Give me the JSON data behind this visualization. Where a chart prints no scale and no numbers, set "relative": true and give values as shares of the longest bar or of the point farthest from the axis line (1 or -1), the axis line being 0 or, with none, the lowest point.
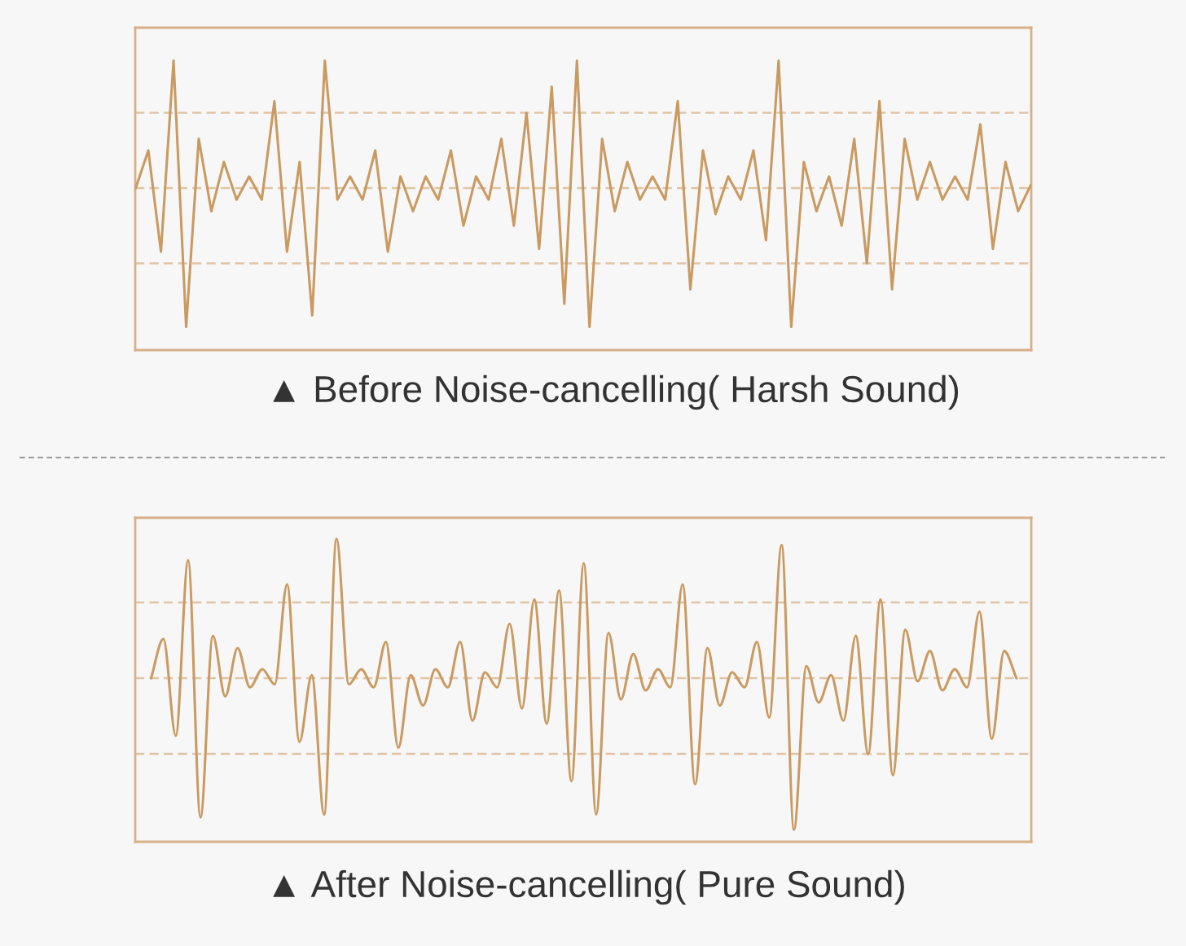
{
  "chart_data": [
    {
      "type": "line",
      "relative": true,
      "color": "#c99a62",
      "line_style": "solid",
      "xlabel": "▲ Before Noise-cancelling( Harsh Sound)",
      "categories": [
        null,
        null,
        null,
        null,
        null,
        null,
        null,
        null,
        null,
        null,
        null,
        null,
        null,
        null,
        null,
        null,
        null,
        null,
        null,
        null,
        null,
        null,
        null,
        null,
        null,
        null,
        null,
        null,
        null,
        null,
        null,
        null,
        null,
        null,
        null,
        null,
        null,
        null,
        null,
        null,
        null,
        null,
        null,
        null,
        null,
        null,
        null,
        null,
        null,
        null,
        null,
        null,
        null,
        null,
        null,
        null,
        null,
        null,
        null,
        null,
        null,
        null,
        null,
        null,
        null,
        null,
        null,
        null,
        null,
        null,
        null,
        null
      ],
      "values": [
        0.56,
        0.69,
        0.34,
        1,
        0.08,
        0.73,
        0.48,
        0.65,
        0.52,
        0.6,
        0.52,
        0.86,
        0.34,
        0.65,
        0.12,
        1,
        0.52,
        0.6,
        0.52,
        0.69,
        0.34,
        0.6,
        0.48,
        0.6,
        0.52,
        0.69,
        0.43,
        0.6,
        0.52,
        0.73,
        0.43,
        0.82,
        0.35,
        0.91,
        0.16,
        1,
        0.08,
        0.73,
        0.48,
        0.65,
        0.52,
        0.6,
        0.52,
        0.86,
        0.21,
        0.69,
        0.47,
        0.6,
        0.52,
        0.69,
        0.38,
        1,
        0.08,
        0.65,
        0.48,
        0.6,
        0.43,
        0.73,
        0.3,
        0.86,
        0.21,
        0.73,
        0.52,
        0.65,
        0.52,
        0.6,
        0.52,
        0.78,
        0.35,
        0.65,
        0.48,
        0.57
      ],
      "ref_lines": [
        {
          "axis": "y",
          "value": 0.82,
          "color": "#e0c4a6",
          "line_style": "dashed"
        },
        {
          "axis": "y",
          "value": 0.56,
          "color": "#e0c4a6",
          "line_style": "dashed"
        },
        {
          "axis": "y",
          "value": 0.3,
          "color": "#e0c4a6",
          "line_style": "dashed"
        }
      ]
    },
    {
      "type": "line",
      "relative": true,
      "color": "#c99a62",
      "line_style": "solid",
      "xlabel": "▲ After Noise-cancelling( Pure Sound)",
      "categories": [
        null,
        null,
        null,
        null,
        null,
        null,
        null,
        null,
        null,
        null,
        null,
        null,
        null,
        null,
        null,
        null,
        null,
        null,
        null,
        null,
        null,
        null,
        null,
        null,
        null,
        null,
        null,
        null,
        null,
        null,
        null,
        null,
        null,
        null,
        null,
        null,
        null,
        null,
        null,
        null,
        null,
        null,
        null,
        null,
        null,
        null,
        null,
        null,
        null,
        null,
        null,
        null,
        null,
        null,
        null,
        null,
        null,
        null,
        null,
        null,
        null,
        null,
        null,
        null,
        null,
        null,
        null,
        null,
        null,
        null,
        null
      ],
      "values": [
        0.54,
        0.67,
        0.35,
        0.93,
        0.08,
        0.68,
        0.48,
        0.64,
        0.51,
        0.57,
        0.52,
        0.85,
        0.33,
        0.55,
        0.09,
        1,
        0.52,
        0.57,
        0.51,
        0.66,
        0.31,
        0.55,
        0.45,
        0.57,
        0.51,
        0.66,
        0.4,
        0.56,
        0.51,
        0.72,
        0.44,
        0.8,
        0.39,
        0.83,
        0.2,
        0.92,
        0.09,
        0.69,
        0.47,
        0.62,
        0.5,
        0.57,
        0.51,
        0.85,
        0.19,
        0.64,
        0.45,
        0.56,
        0.51,
        0.66,
        0.41,
        0.98,
        0.04,
        0.58,
        0.46,
        0.55,
        0.4,
        0.68,
        0.29,
        0.8,
        0.22,
        0.7,
        0.53,
        0.63,
        0.5,
        0.57,
        0.51,
        0.76,
        0.34,
        0.63,
        0.54
      ],
      "ref_lines": [
        {
          "axis": "y",
          "value": 0.79,
          "color": "#e0c4a6",
          "line_style": "dashed"
        },
        {
          "axis": "y",
          "value": 0.54,
          "color": "#e0c4a6",
          "line_style": "dashed"
        },
        {
          "axis": "y",
          "value": 0.29,
          "color": "#e0c4a6",
          "line_style": "dashed"
        }
      ]
    }
  ]
}
